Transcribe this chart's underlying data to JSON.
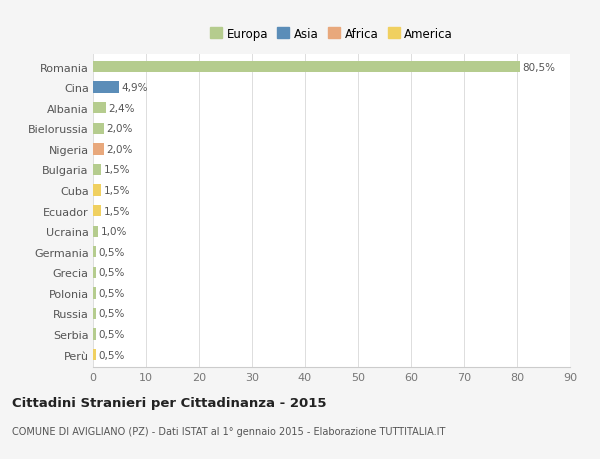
{
  "countries": [
    "Romania",
    "Cina",
    "Albania",
    "Bielorussia",
    "Nigeria",
    "Bulgaria",
    "Cuba",
    "Ecuador",
    "Ucraina",
    "Germania",
    "Grecia",
    "Polonia",
    "Russia",
    "Serbia",
    "Perù"
  ],
  "values": [
    80.5,
    4.9,
    2.4,
    2.0,
    2.0,
    1.5,
    1.5,
    1.5,
    1.0,
    0.5,
    0.5,
    0.5,
    0.5,
    0.5,
    0.5
  ],
  "labels": [
    "80,5%",
    "4,9%",
    "2,4%",
    "2,0%",
    "2,0%",
    "1,5%",
    "1,5%",
    "1,5%",
    "1,0%",
    "0,5%",
    "0,5%",
    "0,5%",
    "0,5%",
    "0,5%",
    "0,5%"
  ],
  "continents": [
    "Europa",
    "Asia",
    "Europa",
    "Europa",
    "Africa",
    "Europa",
    "America",
    "America",
    "Europa",
    "Europa",
    "Europa",
    "Europa",
    "Europa",
    "Europa",
    "America"
  ],
  "continent_colors": {
    "Europa": "#b5cc8e",
    "Asia": "#5b8db8",
    "Africa": "#e8a87c",
    "America": "#f0d060"
  },
  "legend_labels": [
    "Europa",
    "Asia",
    "Africa",
    "America"
  ],
  "legend_colors": [
    "#b5cc8e",
    "#5b8db8",
    "#e8a87c",
    "#f0d060"
  ],
  "title": "Cittadini Stranieri per Cittadinanza - 2015",
  "subtitle": "COMUNE DI AVIGLIANO (PZ) - Dati ISTAT al 1° gennaio 2015 - Elaborazione TUTTITALIA.IT",
  "xlim": [
    0,
    90
  ],
  "xticks": [
    0,
    10,
    20,
    30,
    40,
    50,
    60,
    70,
    80,
    90
  ],
  "background_color": "#f5f5f5",
  "plot_bg_color": "#ffffff",
  "grid_color": "#dddddd",
  "bar_height": 0.55
}
